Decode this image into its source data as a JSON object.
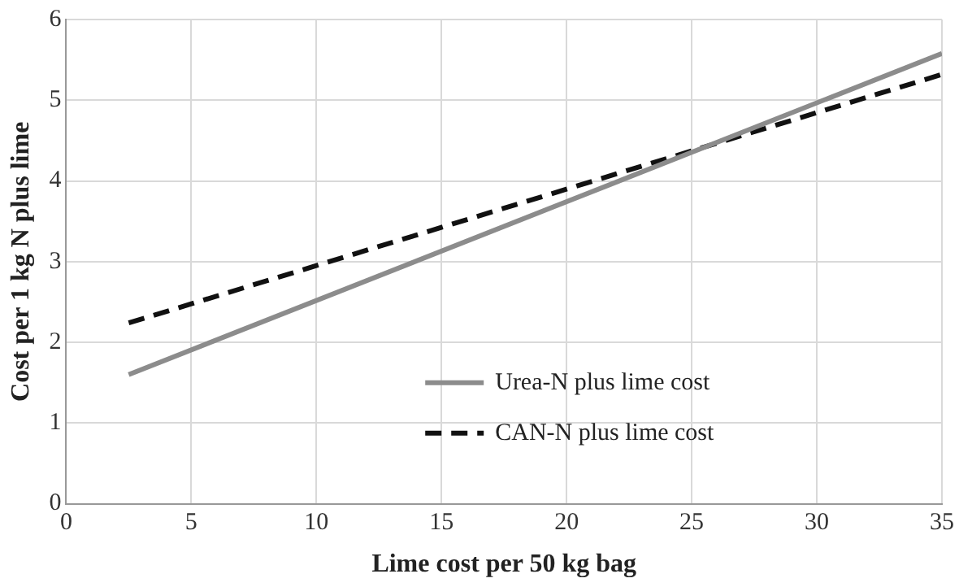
{
  "chart_data": {
    "type": "line",
    "xlabel": "Lime cost per 50 kg bag",
    "ylabel": "Cost per 1 kg N plus lime",
    "x": [
      2.5,
      35
    ],
    "xlim": [
      0,
      35
    ],
    "xticks": [
      0,
      5,
      10,
      15,
      20,
      25,
      30,
      35
    ],
    "ylim": [
      0,
      6
    ],
    "yticks": [
      0,
      1,
      2,
      3,
      4,
      5,
      6
    ],
    "grid": true,
    "legend": "right",
    "marker": "none",
    "series": [
      {
        "name": "Urea-N plus lime cost",
        "color": "#8c8c8c",
        "values": [
          1.6,
          5.58
        ],
        "line_style": "solid"
      },
      {
        "name": "CAN-N plus lime cost",
        "color": "#111111",
        "values": [
          2.24,
          5.32
        ],
        "line_style": "dashed"
      }
    ]
  }
}
